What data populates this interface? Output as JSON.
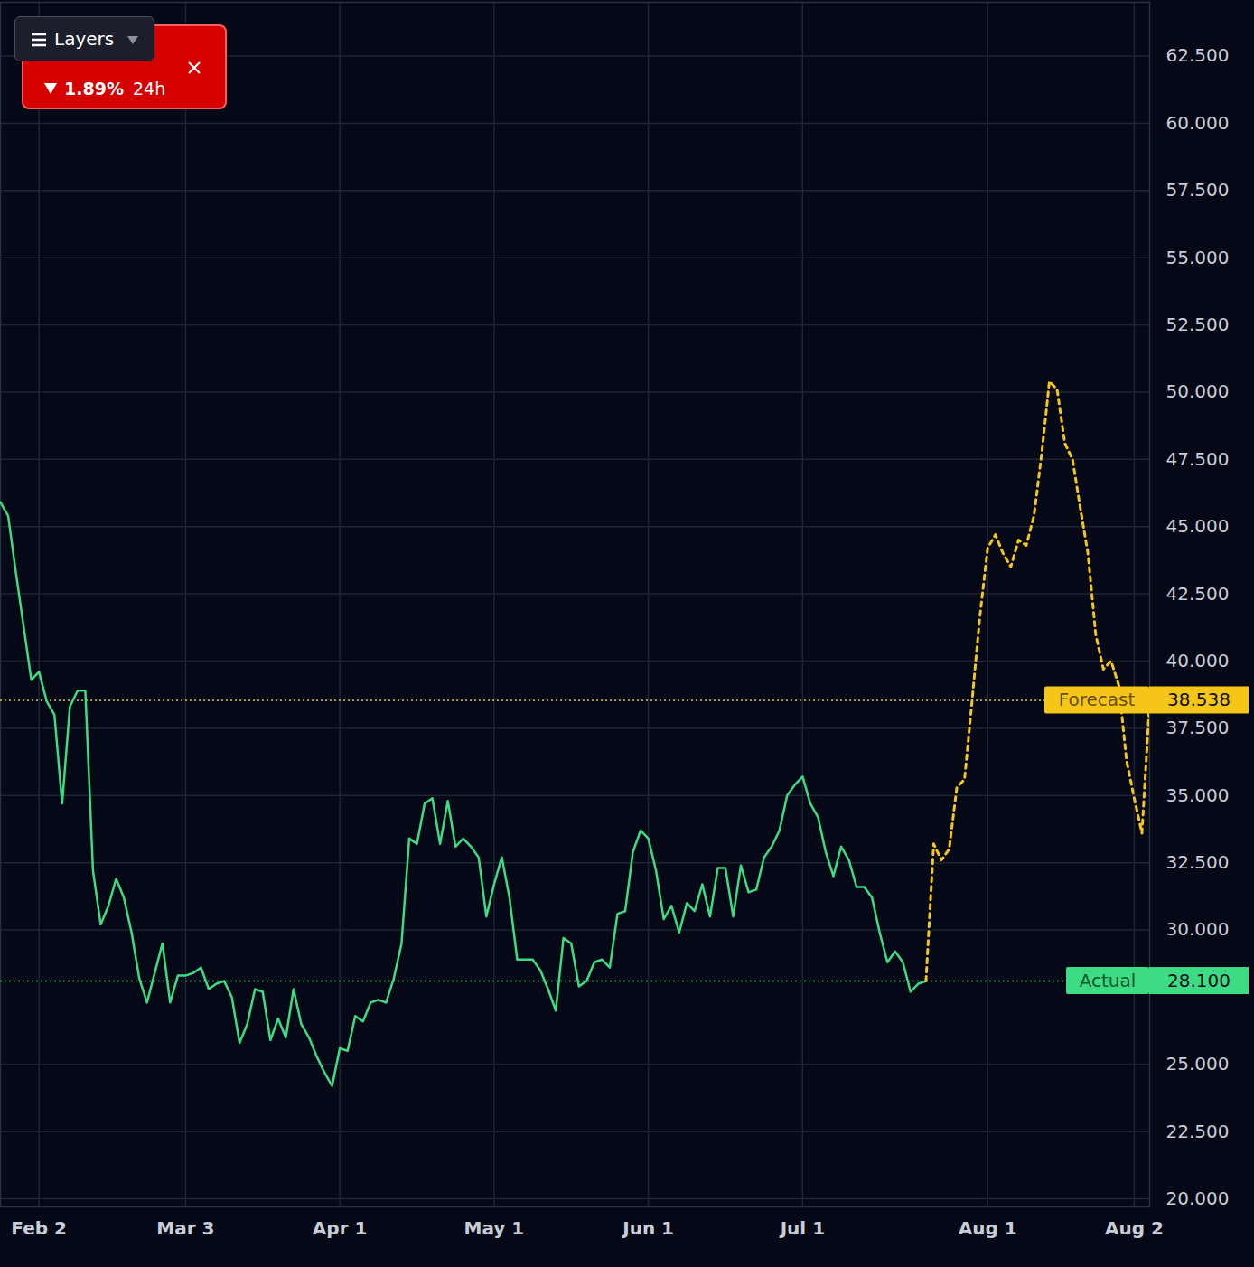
{
  "chart_data": {
    "type": "line",
    "categories": [
      null,
      null,
      null,
      null,
      null,
      "Feb 2",
      null,
      null,
      null,
      null,
      null,
      null,
      null,
      null,
      null,
      null,
      null,
      null,
      null,
      null,
      null,
      null,
      null,
      null,
      "Mar 3",
      null,
      null,
      null,
      null,
      null,
      null,
      null,
      null,
      null,
      null,
      null,
      null,
      null,
      null,
      null,
      null,
      null,
      null,
      null,
      "Apr 1",
      null,
      null,
      null,
      null,
      null,
      null,
      null,
      null,
      null,
      null,
      null,
      null,
      null,
      null,
      null,
      null,
      null,
      null,
      null,
      "May 1",
      null,
      null,
      null,
      null,
      null,
      null,
      null,
      null,
      null,
      null,
      null,
      null,
      null,
      null,
      null,
      null,
      null,
      null,
      null,
      "Jun 1",
      null,
      null,
      null,
      null,
      null,
      null,
      null,
      null,
      null,
      null,
      null,
      null,
      null,
      null,
      null,
      null,
      null,
      null,
      null,
      "Jul 1",
      null,
      null,
      null,
      null,
      null,
      null,
      null,
      null,
      null,
      null,
      null,
      null,
      null,
      null,
      null,
      null,
      null,
      null,
      null,
      null,
      null,
      null,
      null,
      "Aug 1",
      null,
      null,
      null,
      null,
      null,
      null,
      null,
      null,
      null,
      null,
      null,
      null,
      null,
      null,
      null,
      null,
      null,
      null,
      "Aug 2",
      null,
      null
    ],
    "series": [
      {
        "name": "Actual",
        "color": "#3ddc84",
        "line_style": "solid",
        "marker_line": {
          "value": 28.1,
          "label": "28.100"
        },
        "values": [
          45.9,
          45.4,
          43.3,
          41.3,
          39.3,
          39.6,
          38.5,
          38.0,
          34.7,
          38.3,
          38.9,
          38.9,
          32.2,
          30.2,
          30.9,
          31.9,
          31.2,
          29.9,
          28.2,
          27.3,
          28.4,
          29.5,
          27.3,
          28.3,
          28.3,
          28.4,
          28.6,
          27.8,
          28.0,
          28.1,
          27.5,
          25.8,
          26.5,
          27.8,
          27.7,
          25.9,
          26.7,
          26.0,
          27.8,
          26.5,
          26.0,
          25.3,
          24.7,
          24.2,
          25.6,
          25.5,
          26.8,
          26.6,
          27.3,
          27.4,
          27.3,
          28.2,
          29.5,
          33.4,
          33.2,
          34.7,
          34.9,
          33.2,
          34.8,
          33.1,
          33.4,
          33.1,
          32.7,
          30.5,
          31.7,
          32.7,
          31.2,
          28.9,
          28.9,
          28.9,
          28.5,
          27.8,
          27.0,
          29.7,
          29.5,
          27.9,
          28.1,
          28.8,
          28.9,
          28.6,
          30.6,
          30.7,
          32.9,
          33.7,
          33.4,
          32.2,
          30.4,
          30.9,
          29.9,
          31.0,
          30.7,
          31.7,
          30.5,
          32.3,
          32.3,
          30.5,
          32.4,
          31.4,
          31.5,
          32.7,
          33.1,
          33.7,
          35.0,
          35.4,
          35.7,
          34.7,
          34.2,
          32.9,
          32.0,
          33.1,
          32.6,
          31.6,
          31.6,
          31.2,
          29.9,
          28.8,
          29.2,
          28.8,
          27.7,
          28.0,
          28.1,
          null,
          null,
          null,
          null,
          null,
          null,
          null,
          null,
          null,
          null,
          null,
          null,
          null,
          null,
          null,
          null,
          null,
          null,
          null,
          null,
          null,
          null,
          null,
          null,
          null,
          null,
          null,
          null,
          null
        ]
      },
      {
        "name": "Forecast",
        "color": "#f5c518",
        "line_style": "dashed",
        "marker_line": {
          "value": 38.538,
          "label": "38.538"
        },
        "values": [
          null,
          null,
          null,
          null,
          null,
          null,
          null,
          null,
          null,
          null,
          null,
          null,
          null,
          null,
          null,
          null,
          null,
          null,
          null,
          null,
          null,
          null,
          null,
          null,
          null,
          null,
          null,
          null,
          null,
          null,
          null,
          null,
          null,
          null,
          null,
          null,
          null,
          null,
          null,
          null,
          null,
          null,
          null,
          null,
          null,
          null,
          null,
          null,
          null,
          null,
          null,
          null,
          null,
          null,
          null,
          null,
          null,
          null,
          null,
          null,
          null,
          null,
          null,
          null,
          null,
          null,
          null,
          null,
          null,
          null,
          null,
          null,
          null,
          null,
          null,
          null,
          null,
          null,
          null,
          null,
          null,
          null,
          null,
          null,
          null,
          null,
          null,
          null,
          null,
          null,
          null,
          null,
          null,
          null,
          null,
          null,
          null,
          null,
          null,
          null,
          null,
          null,
          null,
          null,
          null,
          null,
          null,
          null,
          null,
          null,
          null,
          null,
          null,
          null,
          null,
          null,
          null,
          null,
          null,
          null,
          28.1,
          33.2,
          32.6,
          33.0,
          35.3,
          35.6,
          38.6,
          41.7,
          44.2,
          44.7,
          44.0,
          43.5,
          44.5,
          44.3,
          45.4,
          47.7,
          50.4,
          50.1,
          48.1,
          47.5,
          45.7,
          44.0,
          41.0,
          39.7,
          40.0,
          39.1,
          36.3,
          34.9,
          33.6,
          38.5
        ]
      }
    ],
    "ylim": [
      19.7,
      64.5
    ],
    "yticks": [
      {
        "value": 20,
        "label": "20.000"
      },
      {
        "value": 22.5,
        "label": "22.500"
      },
      {
        "value": 25,
        "label": "25.000"
      },
      {
        "value": 30,
        "label": "30.000"
      },
      {
        "value": 32.5,
        "label": "32.500"
      },
      {
        "value": 35,
        "label": "35.000"
      },
      {
        "value": 37.5,
        "label": "37.500"
      },
      {
        "value": 40,
        "label": "40.000"
      },
      {
        "value": 42.5,
        "label": "42.500"
      },
      {
        "value": 45,
        "label": "45.000"
      },
      {
        "value": 47.5,
        "label": "47.500"
      },
      {
        "value": 50,
        "label": "50.000"
      },
      {
        "value": 52.5,
        "label": "52.500"
      },
      {
        "value": 55,
        "label": "55.000"
      },
      {
        "value": 57.5,
        "label": "57.500"
      },
      {
        "value": 60,
        "label": "60.000"
      },
      {
        "value": 62.5,
        "label": "62.500"
      }
    ],
    "grid": true,
    "annotations": {
      "menu": "Layers",
      "change": "1.89%",
      "period": "24h"
    }
  }
}
